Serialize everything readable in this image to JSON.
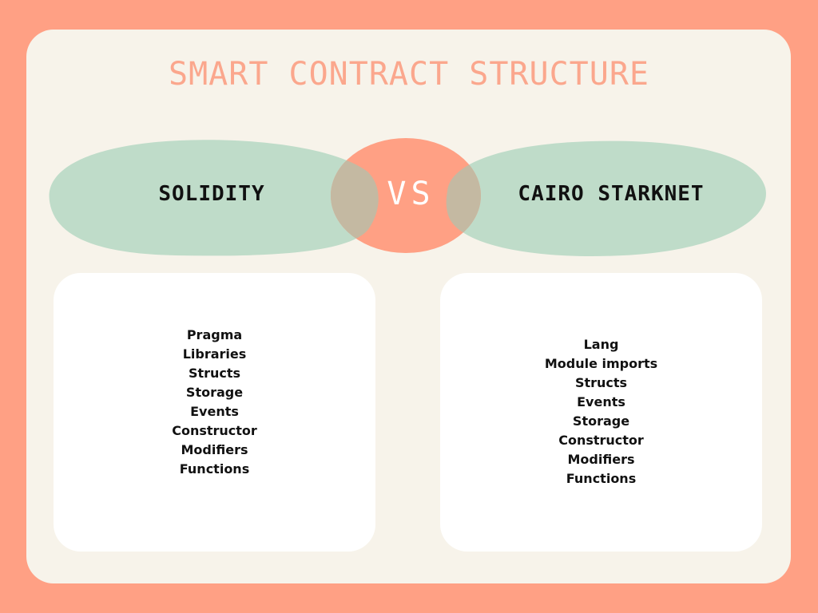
{
  "title": "SMART CONTRACT STRUCTURE",
  "left": {
    "label": "SOLIDITY",
    "items": [
      "Pragma",
      "Libraries",
      "Structs",
      "Storage",
      "Events",
      "Constructor",
      "Modifiers",
      "Functions"
    ]
  },
  "vs": "VS",
  "right": {
    "label": "CAIRO STARKNET",
    "items": [
      "Lang",
      "Module imports",
      "Structs",
      "Events",
      "Storage",
      "Constructor",
      "Modifiers",
      "Functions"
    ]
  },
  "colors": {
    "background": "#FFA084",
    "card": "#F7F3EA",
    "title": "#FBA78D",
    "blob_green": "#BFDCC9",
    "blob_coral": "#FFA084",
    "overlap": "#C4B9A2"
  }
}
